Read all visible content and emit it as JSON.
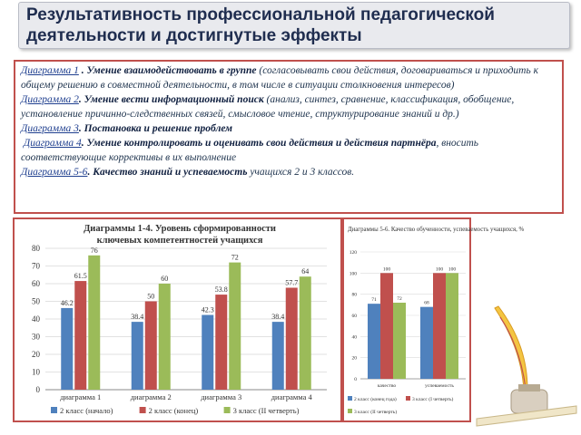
{
  "header": {
    "title": "Результативность профессиональной педагогической деятельности и достигнутые эффекты"
  },
  "description": {
    "items": [
      {
        "ref": "Диаграмма 1",
        "title": "Умение взаимодействовать в группе",
        "text": " (согласовывать свои действия, договариваться и приходить к общему решению в совместной деятельности, в том числе в ситуации столкновения интересов)"
      },
      {
        "ref": "Диаграмма 2",
        "title": "Умение вести информационный поиск",
        "text": " (анализ, синтез, сравнение, классификация, обобщение, установление причинно-следственных связей, смысловое чтение, структурирование знаний и др.)"
      },
      {
        "ref": "Диаграмма 3",
        "title": "Постановка и решение проблем",
        "text": ""
      },
      {
        "ref": "Диаграмма 4",
        "title": "Умение контролировать и оценивать свои действия и действия партнёра",
        "text": ", вносить соответствующие коррективы в их выполнение"
      },
      {
        "ref": "Диаграмма 5-6",
        "title": "Качество знаний и успеваемость",
        "text": " учащихся 2 и 3 классов."
      }
    ]
  },
  "chart_data": [
    {
      "type": "bar",
      "title": "Диаграммы 1-4. Уровень сформированности ключевых компетентностей учащихся",
      "categories": [
        "диаграмма 1",
        "диаграмма 2",
        "диаграмма 3",
        "диаграмма 4"
      ],
      "series": [
        {
          "name": "2 класс (начало)",
          "values": [
            46.2,
            38.4,
            42.3,
            38.4
          ],
          "color": "#4f81bd"
        },
        {
          "name": "2 класс (конец)",
          "values": [
            61.5,
            50,
            53.8,
            57.7
          ],
          "color": "#c0504d"
        },
        {
          "name": "3 класс (II четверть)",
          "values": [
            76,
            60,
            72,
            64
          ],
          "color": "#9bbb59"
        }
      ],
      "ylim": [
        0,
        80
      ],
      "yticks": [
        0,
        10,
        20,
        30,
        40,
        50,
        60,
        70,
        80
      ],
      "grid": true,
      "legend": "bottom"
    },
    {
      "type": "bar",
      "title": "Диаграммы 5-6. Качество обученности, успеваемость учащихся, %",
      "categories": [
        "качество",
        "успеваемость"
      ],
      "series": [
        {
          "name": "2 класс (конец года)",
          "values": [
            71,
            68
          ],
          "color": "#4f81bd"
        },
        {
          "name": "3 класс (I четверть)",
          "values": [
            100,
            100
          ],
          "color": "#c0504d"
        },
        {
          "name": "3 класс (II четверть)",
          "values": [
            72,
            100
          ],
          "color": "#9bbb59"
        }
      ],
      "ylim": [
        0,
        120
      ],
      "yticks": [
        0,
        20,
        40,
        60,
        80,
        100,
        120
      ],
      "grid": true,
      "legend": "bottom"
    }
  ]
}
